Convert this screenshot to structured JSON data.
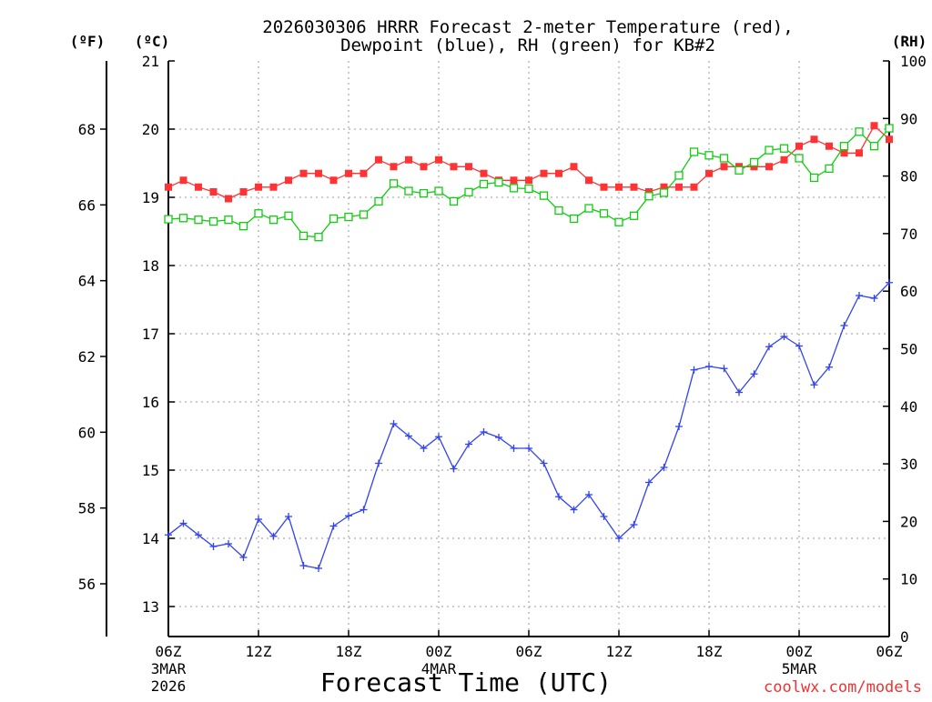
{
  "chart_data": {
    "type": "line",
    "title_line1": "2026030306 HRRR Forecast 2-meter Temperature (red),",
    "title_line2": "Dewpoint (blue), RH (green) for KB#2",
    "xlabel": "Forecast Time (UTC)",
    "credit": "coolwx.com/models",
    "left_unit_f": "(ºF)",
    "left_unit_c": "(ºC)",
    "right_unit": "(RH)",
    "x_forecast_hours": [
      0,
      1,
      2,
      3,
      4,
      5,
      6,
      7,
      8,
      9,
      10,
      11,
      12,
      13,
      14,
      15,
      16,
      17,
      18,
      19,
      20,
      21,
      22,
      23,
      24,
      25,
      26,
      27,
      28,
      29,
      30,
      31,
      32,
      33,
      34,
      35,
      36,
      37,
      38,
      39,
      40,
      41,
      42,
      43,
      44,
      45,
      46,
      47,
      48
    ],
    "x_range_hours": [
      0,
      48
    ],
    "x_ticks": [
      {
        "hour": 0,
        "label": "06Z",
        "date": "3MAR",
        "year": "2026"
      },
      {
        "hour": 6,
        "label": "12Z"
      },
      {
        "hour": 12,
        "label": "18Z"
      },
      {
        "hour": 18,
        "label": "00Z",
        "date": "4MAR"
      },
      {
        "hour": 24,
        "label": "06Z"
      },
      {
        "hour": 30,
        "label": "12Z"
      },
      {
        "hour": 36,
        "label": "18Z"
      },
      {
        "hour": 42,
        "label": "00Z",
        "date": "5MAR"
      },
      {
        "hour": 48,
        "label": "06Z"
      }
    ],
    "celsius_axis": {
      "range": [
        12.56,
        21.0
      ],
      "ticks": [
        13,
        14,
        15,
        16,
        17,
        18,
        19,
        20,
        21
      ]
    },
    "fahrenheit_axis": {
      "ticks": [
        56,
        58,
        60,
        62,
        64,
        66,
        68
      ]
    },
    "rh_axis": {
      "range": [
        0,
        100
      ],
      "ticks": [
        0,
        10,
        20,
        30,
        40,
        50,
        60,
        70,
        80,
        90,
        100
      ]
    },
    "grid": true,
    "series": [
      {
        "name": "Temperature",
        "units": "C",
        "color": "#ff3333",
        "marker": "filled-square",
        "values": [
          19.15,
          19.25,
          19.15,
          19.08,
          18.98,
          19.08,
          19.15,
          19.15,
          19.25,
          19.35,
          19.35,
          19.25,
          19.35,
          19.35,
          19.55,
          19.45,
          19.55,
          19.45,
          19.55,
          19.45,
          19.45,
          19.35,
          19.25,
          19.25,
          19.25,
          19.35,
          19.35,
          19.45,
          19.25,
          19.15,
          19.15,
          19.15,
          19.08,
          19.15,
          19.15,
          19.15,
          19.35,
          19.45,
          19.45,
          19.45,
          19.45,
          19.55,
          19.75,
          19.85,
          19.75,
          19.65,
          19.65,
          20.05,
          19.85
        ]
      },
      {
        "name": "Dewpoint",
        "units": "C",
        "color": "#3344ee",
        "marker": "plus",
        "values": [
          14.05,
          14.22,
          14.05,
          13.88,
          13.92,
          13.72,
          14.28,
          14.03,
          14.32,
          13.6,
          13.56,
          14.18,
          14.33,
          14.42,
          15.1,
          15.68,
          15.5,
          15.32,
          15.49,
          15.02,
          15.38,
          15.56,
          15.48,
          15.32,
          15.32,
          15.1,
          14.61,
          14.42,
          14.64,
          14.32,
          14.0,
          14.2,
          14.82,
          15.04,
          15.64,
          16.47,
          16.52,
          16.49,
          16.14,
          16.41,
          16.81,
          16.96,
          16.82,
          16.25,
          16.51,
          17.12,
          17.56,
          17.52,
          17.75
        ]
      },
      {
        "name": "RH",
        "units": "%",
        "color": "#11cc11",
        "marker": "open-square",
        "values": [
          72.5,
          72.7,
          72.4,
          72.1,
          72.4,
          71.3,
          73.5,
          72.4,
          73.1,
          69.6,
          69.4,
          72.6,
          72.9,
          73.3,
          75.6,
          78.7,
          77.4,
          77.0,
          77.4,
          75.6,
          77.2,
          78.6,
          78.9,
          77.9,
          77.8,
          76.6,
          74.0,
          72.6,
          74.4,
          73.5,
          72.0,
          73.1,
          76.5,
          77.1,
          80.1,
          84.2,
          83.6,
          83.1,
          81.0,
          82.4,
          84.5,
          84.8,
          83.1,
          79.7,
          81.3,
          85.2,
          87.7,
          85.2,
          88.3
        ]
      }
    ]
  }
}
